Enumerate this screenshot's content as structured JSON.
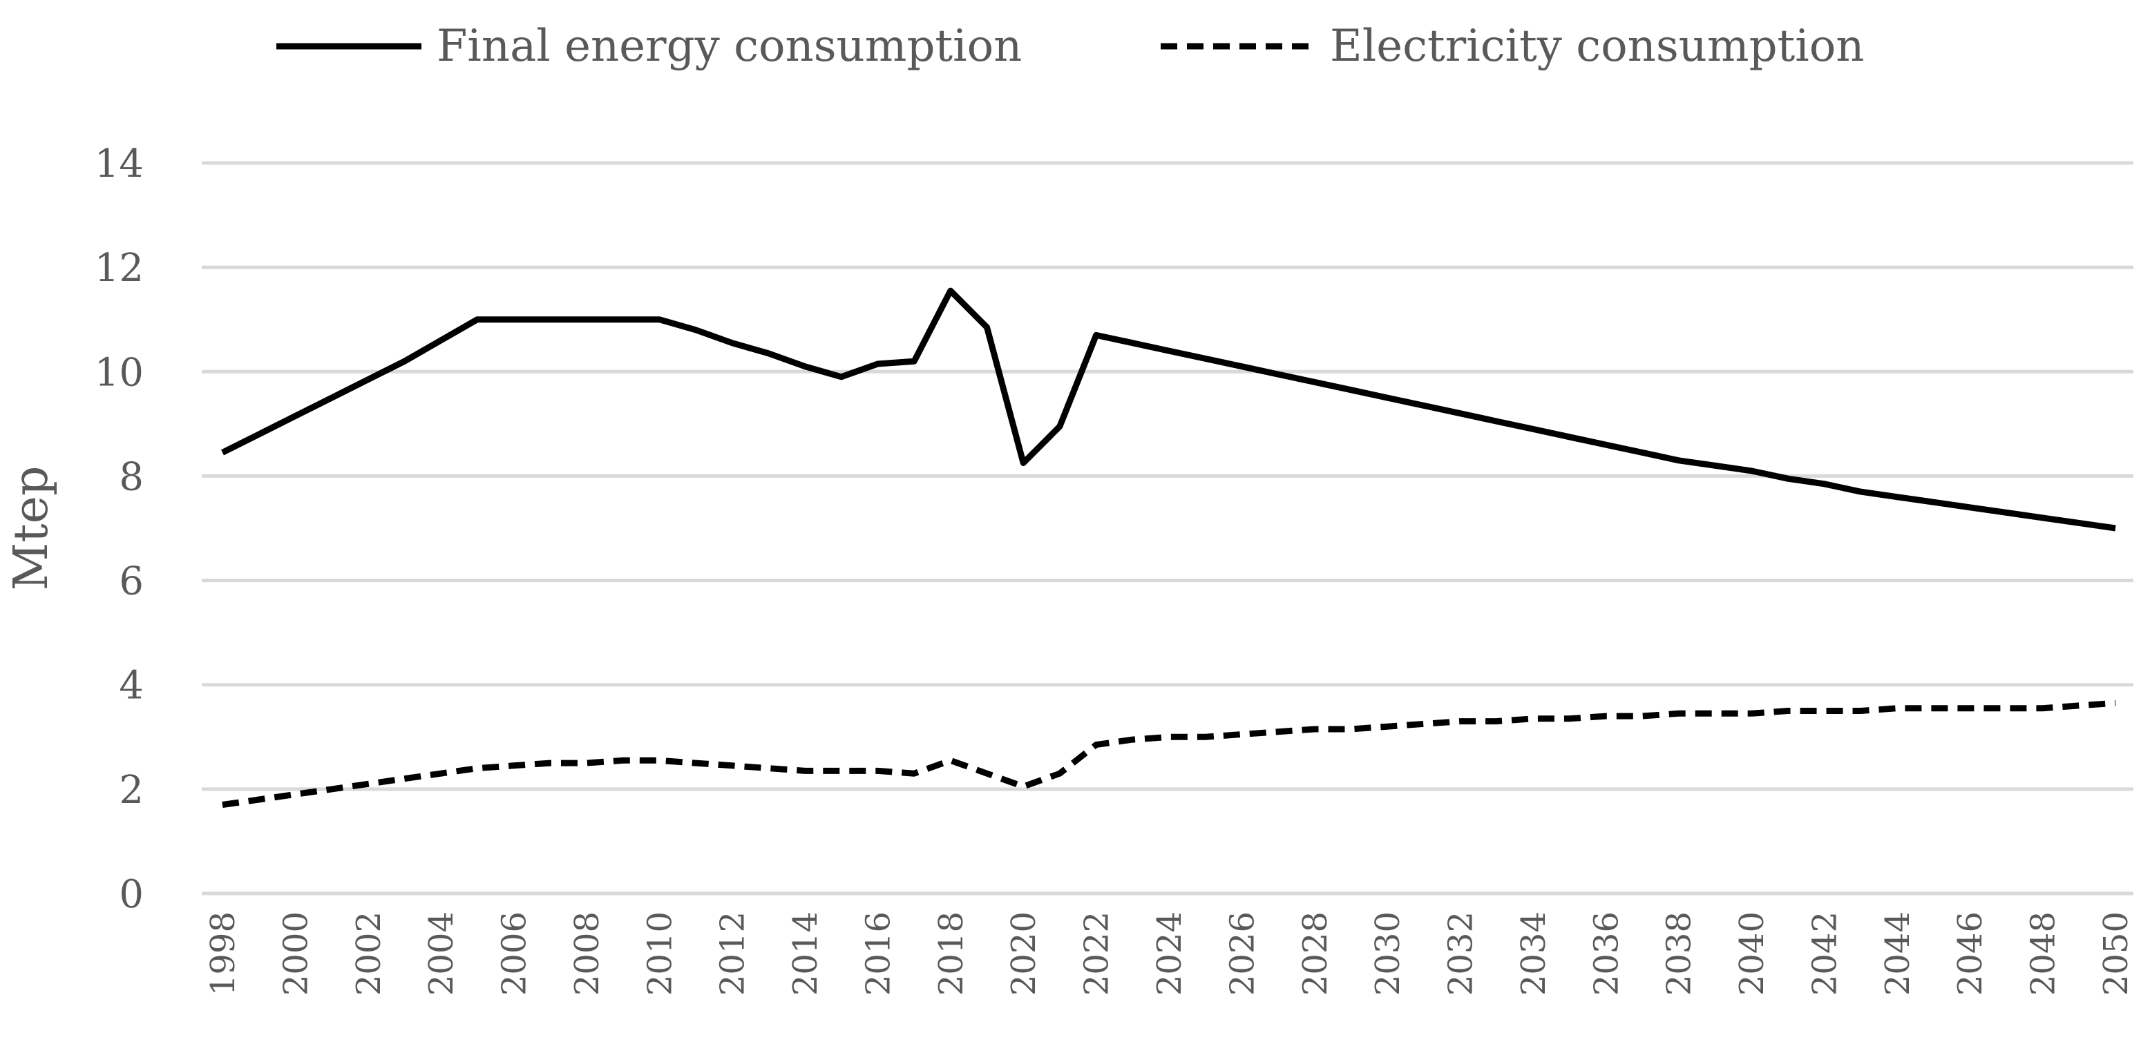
{
  "chart_data": {
    "type": "line",
    "title": "",
    "xlabel": "",
    "ylabel": "Mtep",
    "ylim": [
      0,
      14
    ],
    "yticks": [
      "0",
      "2",
      "4",
      "6",
      "8",
      "10",
      "12",
      "14"
    ],
    "grid": true,
    "legend_position": "top",
    "x": [
      1998,
      1999,
      2000,
      2001,
      2002,
      2003,
      2004,
      2005,
      2006,
      2007,
      2008,
      2009,
      2010,
      2011,
      2012,
      2013,
      2014,
      2015,
      2016,
      2017,
      2018,
      2019,
      2020,
      2021,
      2022,
      2023,
      2024,
      2025,
      2026,
      2027,
      2028,
      2029,
      2030,
      2031,
      2032,
      2033,
      2034,
      2035,
      2036,
      2037,
      2038,
      2039,
      2040,
      2041,
      2042,
      2043,
      2044,
      2045,
      2046,
      2047,
      2048,
      2049,
      2050
    ],
    "x_tick_labels": [
      "1998",
      "2000",
      "2002",
      "2004",
      "2006",
      "2008",
      "2010",
      "2012",
      "2014",
      "2016",
      "2018",
      "2020",
      "2022",
      "2024",
      "2026",
      "2028",
      "2030",
      "2032",
      "2034",
      "2036",
      "2038",
      "2040",
      "2042",
      "2044",
      "2046",
      "2048",
      "2050"
    ],
    "series": [
      {
        "name": "Final energy consumption",
        "style": "solid",
        "color": "#000000",
        "values": [
          8.45,
          8.8,
          9.15,
          9.5,
          9.85,
          10.2,
          10.6,
          11.0,
          11.0,
          11.0,
          11.0,
          11.0,
          11.0,
          10.8,
          10.55,
          10.35,
          10.1,
          9.9,
          10.15,
          10.2,
          11.55,
          10.85,
          8.25,
          8.95,
          10.7,
          10.55,
          10.4,
          10.25,
          10.1,
          9.95,
          9.8,
          9.65,
          9.5,
          9.35,
          9.2,
          9.05,
          8.9,
          8.75,
          8.6,
          8.45,
          8.3,
          8.2,
          8.1,
          7.95,
          7.85,
          7.7,
          7.6,
          7.5,
          7.4,
          7.3,
          7.2,
          7.1,
          7.0
        ]
      },
      {
        "name": "Electricity consumption",
        "style": "dashed",
        "color": "#000000",
        "values": [
          1.7,
          1.8,
          1.9,
          2.0,
          2.1,
          2.2,
          2.3,
          2.4,
          2.45,
          2.5,
          2.5,
          2.55,
          2.55,
          2.5,
          2.45,
          2.4,
          2.35,
          2.35,
          2.35,
          2.3,
          2.55,
          2.3,
          2.05,
          2.3,
          2.85,
          2.95,
          3.0,
          3.0,
          3.05,
          3.1,
          3.15,
          3.15,
          3.2,
          3.25,
          3.3,
          3.3,
          3.35,
          3.35,
          3.4,
          3.4,
          3.45,
          3.45,
          3.45,
          3.5,
          3.5,
          3.5,
          3.55,
          3.55,
          3.55,
          3.55,
          3.55,
          3.6,
          3.65
        ]
      }
    ]
  }
}
